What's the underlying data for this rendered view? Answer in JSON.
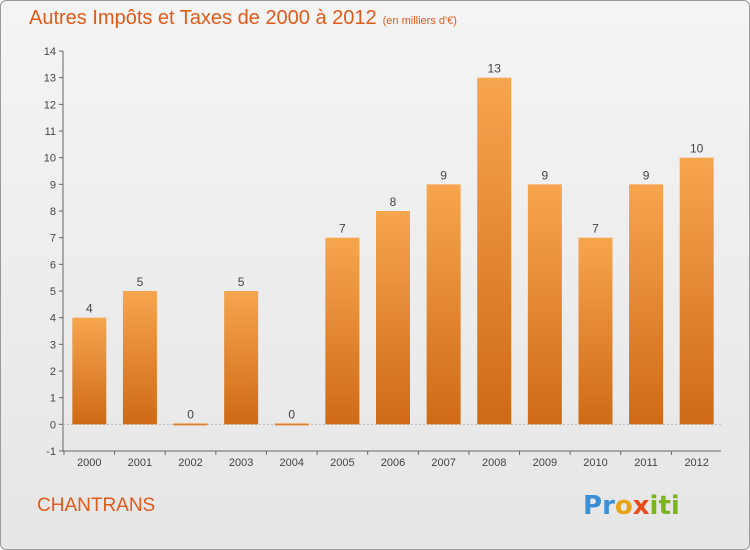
{
  "header": {
    "title": "Autres Impôts et Taxes de 2000 à 2012",
    "subtitle": "(en milliers d'€)"
  },
  "footer": {
    "place": "CHANTRANS",
    "logo": "Proxiti"
  },
  "colors": {
    "accent": "#e05a1a",
    "bar_top": "#f7a54e",
    "bar_bottom": "#cf6a16"
  },
  "chart_data": {
    "type": "bar",
    "categories": [
      "2000",
      "2001",
      "2002",
      "2003",
      "2004",
      "2005",
      "2006",
      "2007",
      "2008",
      "2009",
      "2010",
      "2011",
      "2012"
    ],
    "values": [
      4,
      5,
      0,
      5,
      0,
      7,
      8,
      9,
      13,
      9,
      7,
      9,
      10
    ],
    "ylim": [
      -1,
      14
    ],
    "yticks": [
      -1,
      0,
      1,
      2,
      3,
      4,
      5,
      6,
      7,
      8,
      9,
      10,
      11,
      12,
      13,
      14
    ],
    "grid": false,
    "legend": "none"
  }
}
